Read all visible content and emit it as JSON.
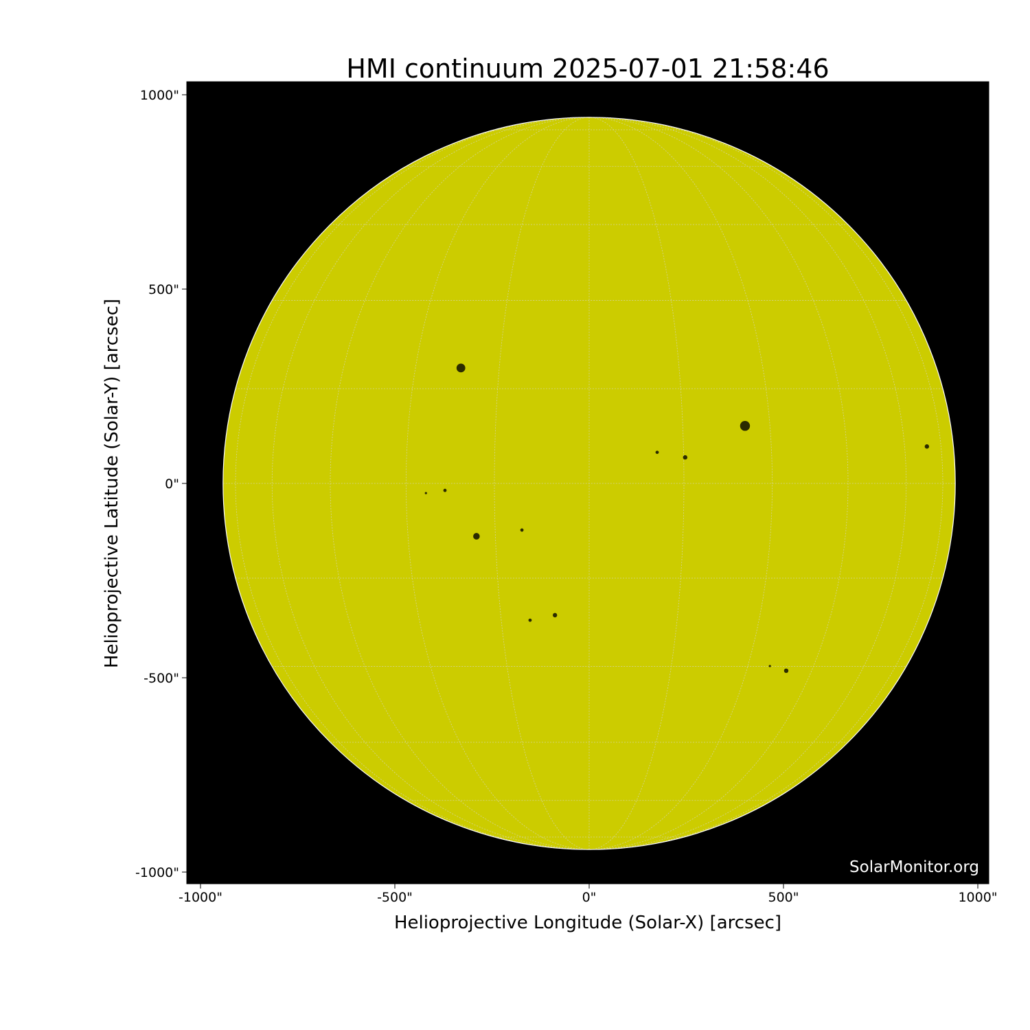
{
  "chart_data": {
    "type": "heatmap",
    "title": "HMI continuum 2025-07-01 21:58:46",
    "xlabel": "Helioprojective Longitude (Solar-X) [arcsec]",
    "ylabel": "Helioprojective Latitude (Solar-Y) [arcsec]",
    "xlim": [
      -1035,
      1035
    ],
    "ylim": [
      -1035,
      1035
    ],
    "x_ticks": [
      -1000,
      -500,
      0,
      500,
      1000
    ],
    "y_ticks": [
      -1000,
      -500,
      0,
      500,
      1000
    ],
    "x_tick_labels": [
      "-1000\"",
      "-500\"",
      "0\"",
      "500\"",
      "1000\""
    ],
    "y_tick_labels": [
      "-1000\"",
      "-500\"",
      "0\"",
      "500\"",
      "1000\""
    ],
    "solar_radius_arcsec": 942,
    "heliographic_grid_step_deg": 15,
    "grid": true,
    "colormap": "yellow",
    "colors": {
      "disk": "#cccc00",
      "background": "#000000",
      "grid": "#d8d8d8",
      "spot": "#1a1a00",
      "watermark": "#ffffff"
    },
    "sunspots": [
      {
        "x": -330,
        "y": 297,
        "size": 8
      },
      {
        "x": 401,
        "y": 148,
        "size": 9
      },
      {
        "x": -290,
        "y": -136,
        "size": 6
      },
      {
        "x": 247,
        "y": 67,
        "size": 4
      },
      {
        "x": 175,
        "y": 80,
        "size": 3
      },
      {
        "x": -371,
        "y": -18,
        "size": 3
      },
      {
        "x": -420,
        "y": -25,
        "size": 2
      },
      {
        "x": 507,
        "y": -482,
        "size": 4
      },
      {
        "x": 465,
        "y": -470,
        "size": 2
      },
      {
        "x": -88,
        "y": -339,
        "size": 4
      },
      {
        "x": -152,
        "y": -352,
        "size": 3
      },
      {
        "x": 869,
        "y": 95,
        "size": 4
      },
      {
        "x": -173,
        "y": -120,
        "size": 3
      }
    ],
    "watermark": "SolarMonitor.org"
  }
}
